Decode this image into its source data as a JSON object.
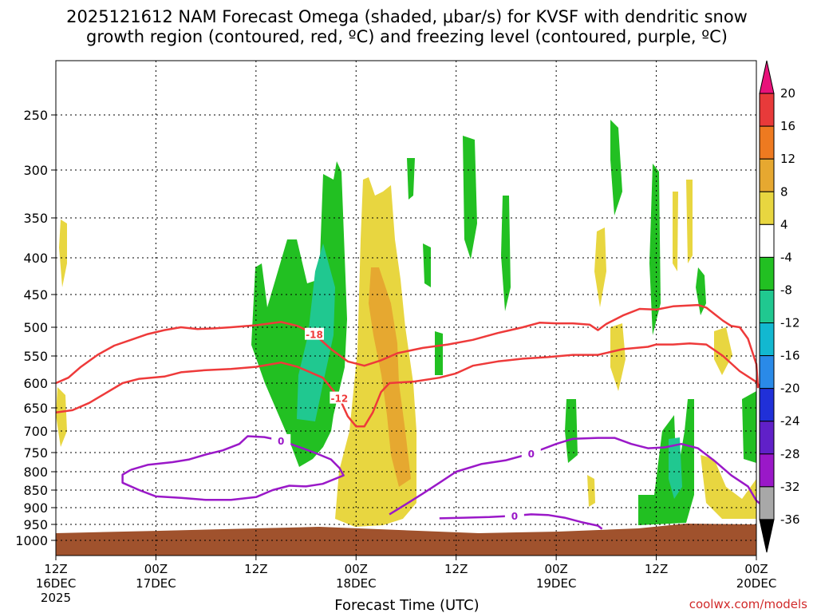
{
  "chart_data": {
    "type": "contour",
    "title_line1": "2025121612 NAM Forecast Omega (shaded, μbar/s) for KVSF with dendritic snow",
    "title_line2": "growth region (contoured, red, ºC) and freezing level (contoured, purple, ºC)",
    "xlabel": "Forecast Time (UTC)",
    "credit": "coolwx.com/models",
    "xrange_hours": [
      0,
      84
    ],
    "x_ticks": [
      {
        "hour": 0,
        "l1": "12Z",
        "l2": "16DEC",
        "l3": "2025"
      },
      {
        "hour": 12,
        "l1": "00Z",
        "l2": "17DEC",
        "l3": ""
      },
      {
        "hour": 24,
        "l1": "12Z",
        "l2": "",
        "l3": ""
      },
      {
        "hour": 36,
        "l1": "00Z",
        "l2": "18DEC",
        "l3": ""
      },
      {
        "hour": 48,
        "l1": "12Z",
        "l2": "",
        "l3": ""
      },
      {
        "hour": 60,
        "l1": "00Z",
        "l2": "19DEC",
        "l3": ""
      },
      {
        "hour": 72,
        "l1": "12Z",
        "l2": "",
        "l3": ""
      },
      {
        "hour": 84,
        "l1": "00Z",
        "l2": "20DEC",
        "l3": ""
      }
    ],
    "y_ticks": [
      "250",
      "300",
      "350",
      "400",
      "450",
      "500",
      "550",
      "600",
      "650",
      "700",
      "750",
      "800",
      "850",
      "900",
      "950",
      "1000"
    ],
    "y_values_mb": [
      250,
      300,
      350,
      400,
      450,
      500,
      550,
      600,
      650,
      700,
      750,
      800,
      850,
      900,
      950,
      1000
    ],
    "colorbar": {
      "labels": [
        "20",
        "16",
        "12",
        "8",
        "4",
        "-4",
        "-8",
        "-12",
        "-16",
        "-20",
        "-24",
        "-28",
        "-32",
        "-36"
      ],
      "colors": [
        "#e8127a",
        "#e83a3a",
        "#ee7a20",
        "#e6a830",
        "#e8d640",
        "#ffffff",
        "#22c022",
        "#20c890",
        "#12b8d0",
        "#2a8ae8",
        "#2030d8",
        "#6020c8",
        "#9a18c8",
        "#a8a8a8",
        "#000000"
      ]
    },
    "contours": [
      {
        "name": "dgz-top",
        "level": "-18",
        "color": "#ee3a3a",
        "label": "-18",
        "points": [
          [
            0,
            600
          ],
          [
            1.5,
            590
          ],
          [
            3,
            570
          ],
          [
            5,
            548
          ],
          [
            7,
            532
          ],
          [
            9,
            522
          ],
          [
            11,
            512
          ],
          [
            13,
            505
          ],
          [
            15,
            500
          ],
          [
            17,
            503
          ],
          [
            19,
            502
          ],
          [
            21,
            500
          ],
          [
            24,
            497
          ],
          [
            27,
            492
          ],
          [
            29,
            498
          ],
          [
            31,
            512
          ],
          [
            33,
            538
          ],
          [
            35,
            560
          ],
          [
            37,
            568
          ],
          [
            39,
            558
          ],
          [
            41,
            545
          ],
          [
            44,
            536
          ],
          [
            47,
            530
          ],
          [
            50,
            522
          ],
          [
            53,
            510
          ],
          [
            56,
            500
          ],
          [
            58,
            493
          ],
          [
            60,
            494
          ],
          [
            62,
            494
          ],
          [
            64,
            496
          ],
          [
            65,
            505
          ],
          [
            66,
            495
          ],
          [
            68,
            482
          ],
          [
            70,
            472
          ],
          [
            72,
            473
          ],
          [
            74,
            468
          ],
          [
            77,
            466
          ],
          [
            78,
            470
          ],
          [
            79,
            480
          ],
          [
            80,
            490
          ],
          [
            81,
            498
          ],
          [
            82,
            500
          ],
          [
            83,
            520
          ],
          [
            84,
            565
          ],
          [
            84.2,
            610
          ]
        ]
      },
      {
        "name": "dgz-bottom",
        "level": "-12",
        "color": "#ee3a3a",
        "label": "-12",
        "points": [
          [
            0,
            660
          ],
          [
            2,
            655
          ],
          [
            4,
            640
          ],
          [
            6,
            620
          ],
          [
            8,
            600
          ],
          [
            10,
            592
          ],
          [
            13,
            588
          ],
          [
            15,
            580
          ],
          [
            18,
            576
          ],
          [
            21,
            574
          ],
          [
            24,
            570
          ],
          [
            27,
            562
          ],
          [
            29,
            570
          ],
          [
            32,
            590
          ],
          [
            34,
            630
          ],
          [
            35,
            668
          ],
          [
            36,
            690
          ],
          [
            37,
            690
          ],
          [
            38,
            660
          ],
          [
            39,
            618
          ],
          [
            40,
            600
          ],
          [
            43,
            597
          ],
          [
            46,
            590
          ],
          [
            48,
            582
          ],
          [
            50,
            568
          ],
          [
            53,
            560
          ],
          [
            56,
            555
          ],
          [
            59,
            552
          ],
          [
            62,
            548
          ],
          [
            65,
            548
          ],
          [
            68,
            538
          ],
          [
            71,
            534
          ],
          [
            72,
            530
          ],
          [
            74,
            530
          ],
          [
            76,
            528
          ],
          [
            78,
            530
          ],
          [
            80,
            550
          ],
          [
            82,
            578
          ],
          [
            84,
            598
          ],
          [
            85.5,
            630
          ]
        ]
      },
      {
        "name": "fzl-a",
        "level": "0",
        "color": "#9a18c8",
        "label": "0",
        "points": [
          [
            9,
            795
          ],
          [
            11,
            782
          ],
          [
            14,
            775
          ],
          [
            16,
            768
          ],
          [
            18,
            755
          ],
          [
            20,
            745
          ],
          [
            22,
            730
          ],
          [
            23,
            712
          ],
          [
            25,
            714
          ],
          [
            27,
            722
          ],
          [
            29,
            736
          ],
          [
            31,
            750
          ],
          [
            33,
            768
          ],
          [
            34,
            790
          ],
          [
            34.5,
            810
          ],
          [
            32,
            833
          ],
          [
            30,
            840
          ],
          [
            28,
            838
          ],
          [
            26,
            850
          ],
          [
            24,
            870
          ],
          [
            21,
            878
          ],
          [
            18,
            878
          ],
          [
            15,
            872
          ],
          [
            12,
            868
          ],
          [
            10,
            850
          ],
          [
            8,
            830
          ],
          [
            8,
            808
          ],
          [
            9,
            795
          ]
        ]
      },
      {
        "name": "fzl-b",
        "level": "0",
        "color": "#9a18c8",
        "label": "0",
        "points": [
          [
            40,
            920
          ],
          [
            42,
            890
          ],
          [
            44,
            860
          ],
          [
            46,
            830
          ],
          [
            48,
            800
          ],
          [
            51,
            780
          ],
          [
            54,
            770
          ],
          [
            57,
            752
          ],
          [
            60,
            730
          ],
          [
            62,
            718
          ],
          [
            65,
            716
          ],
          [
            67,
            716
          ],
          [
            69,
            730
          ],
          [
            71,
            740
          ],
          [
            73,
            738
          ],
          [
            75,
            730
          ],
          [
            77,
            740
          ],
          [
            79,
            772
          ],
          [
            81,
            810
          ],
          [
            83,
            840
          ],
          [
            84,
            880
          ],
          [
            85,
            900
          ]
        ]
      },
      {
        "name": "fzl-c",
        "level": "0",
        "color": "#9a18c8",
        "label": "0",
        "points": [
          [
            46,
            932
          ],
          [
            49,
            930
          ],
          [
            52,
            928
          ],
          [
            55,
            924
          ],
          [
            57,
            920
          ],
          [
            59,
            922
          ],
          [
            61,
            930
          ],
          [
            63,
            943
          ],
          [
            65,
            954
          ],
          [
            65.5,
            964
          ]
        ]
      }
    ]
  }
}
